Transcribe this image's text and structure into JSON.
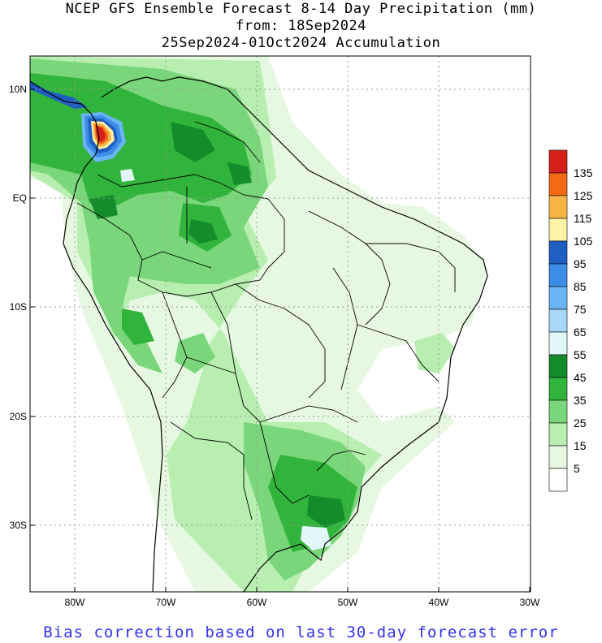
{
  "header": {
    "title": "NCEP GFS Ensemble Forecast 8-14 Day Precipitation (mm)",
    "from_line": "from: 18Sep2024",
    "accumulation_line": "25Sep2024-01Oct2024 Accumulation"
  },
  "map": {
    "lat_labels": [
      "10N",
      "EQ",
      "10S",
      "20S",
      "30S"
    ],
    "lon_labels": [
      "80W",
      "70W",
      "60W",
      "50W",
      "40W",
      "30W"
    ]
  },
  "legend": {
    "labels": [
      "135",
      "125",
      "115",
      "105",
      "95",
      "85",
      "75",
      "65",
      "55",
      "45",
      "35",
      "25",
      "15",
      "5"
    ],
    "colors": [
      "#d7201c",
      "#f46a14",
      "#f8b445",
      "#fff3a8",
      "#1f5fc4",
      "#3c8de8",
      "#6ab4f4",
      "#a8d8f8",
      "#e2f8f8",
      "#158c2c",
      "#31b43c",
      "#7ad67a",
      "#b8eeb0",
      "#e6f8e2",
      "#ffffff"
    ]
  },
  "footer": {
    "note": "Bias correction based on last 30-day forecast error",
    "note_color": "#3333ee"
  }
}
